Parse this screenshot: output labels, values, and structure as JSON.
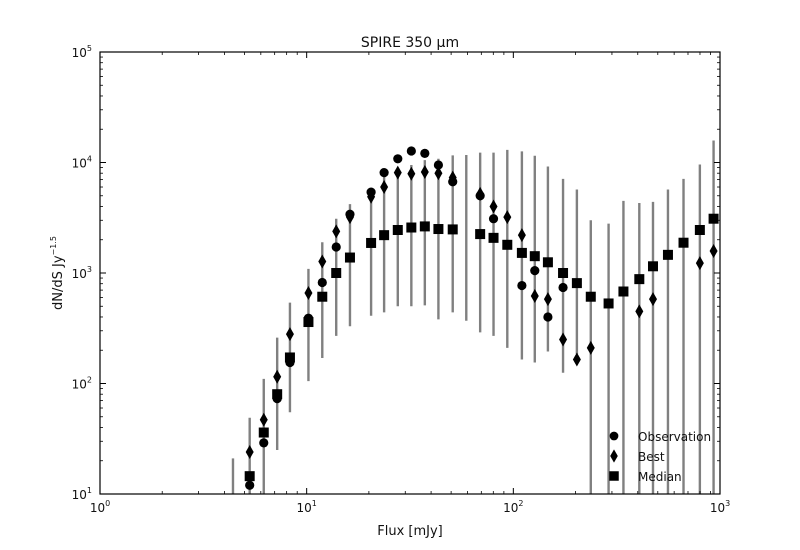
{
  "chart_data": {
    "type": "scatter",
    "title": "SPIRE 350 μm",
    "xlabel": "Flux [mJy]",
    "ylabel": "dN/dS Jy",
    "ylabel_exponent": "−1.5",
    "x_scale": "log",
    "y_scale": "log",
    "xlim": [
      1,
      1000
    ],
    "ylim": [
      10,
      100000
    ],
    "x_ticks": [
      {
        "value": 1,
        "base": "10",
        "exp": "0"
      },
      {
        "value": 10,
        "base": "10",
        "exp": "1"
      },
      {
        "value": 100,
        "base": "10",
        "exp": "2"
      },
      {
        "value": 1000,
        "base": "10",
        "exp": "3"
      }
    ],
    "y_ticks": [
      {
        "value": 10,
        "base": "10",
        "exp": "1"
      },
      {
        "value": 100,
        "base": "10",
        "exp": "2"
      },
      {
        "value": 1000,
        "base": "10",
        "exp": "3"
      },
      {
        "value": 10000,
        "base": "10",
        "exp": "4"
      },
      {
        "value": 100000,
        "base": "10",
        "exp": "5"
      }
    ],
    "grid": false,
    "legend_position": "lower-right",
    "colors": {
      "markers": "#000000",
      "error_bars": "#808080",
      "frame": "#000000"
    },
    "series": [
      {
        "name": "Observation",
        "marker": "circle",
        "points": [
          [
            5.3,
            12
          ],
          [
            6.2,
            29
          ],
          [
            7.2,
            73
          ],
          [
            8.3,
            155
          ],
          [
            10.2,
            390
          ],
          [
            11.9,
            820
          ],
          [
            13.9,
            1720
          ],
          [
            16.2,
            3400
          ],
          [
            20.5,
            5400
          ],
          [
            23.7,
            8100
          ],
          [
            27.6,
            10800
          ],
          [
            32.1,
            12700
          ],
          [
            37.3,
            12100
          ],
          [
            43.4,
            9500
          ],
          [
            50.9,
            6700
          ],
          [
            69.1,
            5000
          ],
          [
            80.2,
            3100
          ],
          [
            110.0,
            770
          ],
          [
            127.0,
            1050
          ],
          [
            147.0,
            400
          ],
          [
            174.0,
            740
          ]
        ]
      },
      {
        "name": "Best",
        "marker": "diamond",
        "points": [
          [
            5.3,
            24
          ],
          [
            6.2,
            47
          ],
          [
            7.2,
            115
          ],
          [
            8.3,
            280
          ],
          [
            10.2,
            660
          ],
          [
            11.9,
            1270
          ],
          [
            13.9,
            2380
          ],
          [
            16.2,
            3200
          ],
          [
            20.5,
            4900
          ],
          [
            23.7,
            6000
          ],
          [
            27.6,
            8100
          ],
          [
            32.1,
            7900
          ],
          [
            37.3,
            8200
          ],
          [
            43.4,
            8000
          ],
          [
            50.9,
            7300
          ],
          [
            69.1,
            5200
          ],
          [
            80.2,
            4000
          ],
          [
            93.5,
            3200
          ],
          [
            110.0,
            2200
          ],
          [
            127.0,
            620
          ],
          [
            147.0,
            580
          ],
          [
            174.0,
            250
          ],
          [
            203.0,
            165
          ],
          [
            237.0,
            210
          ],
          [
            407.0,
            450
          ],
          [
            474.0,
            580
          ],
          [
            799.0,
            1230
          ],
          [
            931.0,
            1580
          ]
        ]
      },
      {
        "name": "Median",
        "marker": "square",
        "points": [
          [
            5.3,
            14.5
          ],
          [
            6.2,
            36
          ],
          [
            7.2,
            80
          ],
          [
            8.3,
            172
          ],
          [
            10.2,
            360
          ],
          [
            11.9,
            610
          ],
          [
            13.9,
            1000
          ],
          [
            16.2,
            1380
          ],
          [
            20.5,
            1870
          ],
          [
            23.7,
            2200
          ],
          [
            27.6,
            2450
          ],
          [
            32.1,
            2580
          ],
          [
            37.3,
            2640
          ],
          [
            43.4,
            2500
          ],
          [
            50.9,
            2480
          ],
          [
            69.1,
            2250
          ],
          [
            80.2,
            2080
          ],
          [
            93.5,
            1800
          ],
          [
            110.0,
            1520
          ],
          [
            127.0,
            1420
          ],
          [
            147.0,
            1250
          ],
          [
            174.0,
            1000
          ],
          [
            203.0,
            810
          ],
          [
            237.0,
            610
          ],
          [
            289.0,
            530
          ],
          [
            341.0,
            680
          ],
          [
            407.0,
            880
          ],
          [
            474.0,
            1150
          ],
          [
            560.0,
            1460
          ],
          [
            666.0,
            1880
          ],
          [
            799.0,
            2450
          ],
          [
            931.0,
            3100
          ]
        ],
        "error_bars": [
          [
            4.4,
            10,
            21
          ],
          [
            5.3,
            10,
            49
          ],
          [
            6.2,
            10,
            110
          ],
          [
            7.2,
            25,
            260
          ],
          [
            8.3,
            55,
            540
          ],
          [
            10.2,
            105,
            1090
          ],
          [
            11.9,
            170,
            1900
          ],
          [
            13.9,
            270,
            3100
          ],
          [
            16.2,
            330,
            4200
          ],
          [
            20.5,
            410,
            5500
          ],
          [
            23.7,
            440,
            7400
          ],
          [
            27.6,
            500,
            8100
          ],
          [
            32.1,
            500,
            9500
          ],
          [
            37.3,
            510,
            10500
          ],
          [
            43.4,
            380,
            10800
          ],
          [
            50.9,
            440,
            11600
          ],
          [
            59.2,
            370,
            11700
          ],
          [
            69.1,
            290,
            12300
          ],
          [
            80.2,
            270,
            12300
          ],
          [
            93.5,
            210,
            13000
          ],
          [
            110.0,
            165,
            12600
          ],
          [
            127.0,
            155,
            11500
          ],
          [
            147.0,
            195,
            9200
          ],
          [
            174.0,
            125,
            7100
          ],
          [
            203.0,
            185,
            5700
          ],
          [
            237.0,
            10,
            3000
          ],
          [
            289.0,
            10,
            2800
          ],
          [
            341.0,
            10,
            4500
          ],
          [
            407.0,
            10,
            4300
          ],
          [
            474.0,
            10,
            4400
          ],
          [
            560.0,
            10,
            5700
          ],
          [
            666.0,
            10,
            7100
          ],
          [
            799.0,
            10,
            9600
          ],
          [
            931.0,
            10,
            15800
          ]
        ]
      }
    ]
  }
}
